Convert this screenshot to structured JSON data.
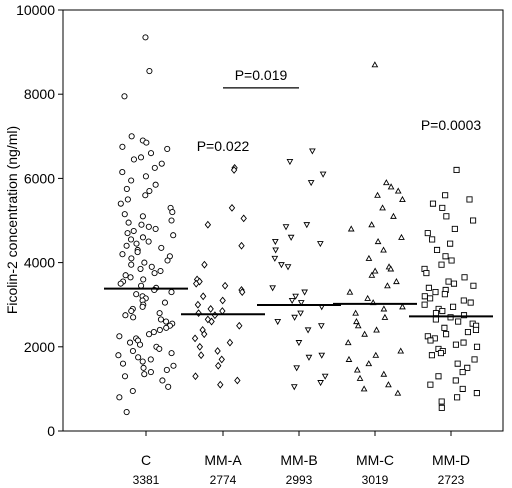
{
  "chart_data": {
    "type": "scatter",
    "ylabel": "Ficolin-2 concentration (ng/ml)",
    "ylim": [
      0,
      10000
    ],
    "yticks": [
      0,
      2000,
      4000,
      6000,
      8000,
      10000
    ],
    "grid": false,
    "categories": [
      "C",
      "MM-A",
      "MM-B",
      "MM-C",
      "MM-D"
    ],
    "medians": [
      "3381",
      "2774",
      "2993",
      "3019",
      "2723"
    ],
    "series": [
      {
        "category": "C",
        "marker": "circle",
        "median": 3381,
        "values": [
          9350,
          8550,
          7950,
          7000,
          6900,
          6850,
          6750,
          6700,
          6600,
          6500,
          6450,
          6350,
          6250,
          6150,
          6050,
          5950,
          5850,
          5750,
          5700,
          5600,
          5500,
          5400,
          5300,
          5200,
          5150,
          5100,
          5000,
          4950,
          4900,
          4850,
          4800,
          4750,
          4700,
          4650,
          4600,
          4550,
          4500,
          4450,
          4400,
          4350,
          4300,
          4250,
          4200,
          4150,
          4100,
          4050,
          4000,
          3950,
          3900,
          3850,
          3800,
          3750,
          3700,
          3650,
          3600,
          3550,
          3500,
          3450,
          3400,
          3350,
          3300,
          3250,
          3200,
          3150,
          3100,
          3050,
          3000,
          2950,
          2900,
          2850,
          2800,
          2750,
          2700,
          2650,
          2600,
          2550,
          2500,
          2450,
          2400,
          2350,
          2300,
          2250,
          2200,
          2150,
          2100,
          2050,
          2000,
          1950,
          1900,
          1850,
          1800,
          1750,
          1700,
          1650,
          1600,
          1550,
          1500,
          1450,
          1400,
          1350,
          1300,
          1200,
          1050,
          950,
          800,
          450
        ]
      },
      {
        "category": "MM-A",
        "marker": "diamond",
        "median": 2774,
        "values": [
          6250,
          6200,
          5300,
          5050,
          4900,
          4400,
          3950,
          3600,
          3550,
          3500,
          3450,
          3350,
          3300,
          3200,
          3100,
          3000,
          2900,
          2850,
          2800,
          2750,
          2650,
          2600,
          2500,
          2400,
          2300,
          2200,
          2100,
          2000,
          1900,
          1800,
          1700,
          1550,
          1300,
          1200,
          1100
        ]
      },
      {
        "category": "MM-B",
        "marker": "triangle-down",
        "median": 2993,
        "values": [
          6650,
          6400,
          6100,
          5900,
          4900,
          4850,
          4600,
          4500,
          4450,
          4300,
          4100,
          3950,
          3900,
          3400,
          3300,
          3200,
          3100,
          3050,
          2950,
          2800,
          2700,
          2600,
          2500,
          2400,
          2100,
          1800,
          1750,
          1500,
          1300,
          1150,
          1050
        ]
      },
      {
        "category": "MM-C",
        "marker": "triangle-up",
        "median": 3019,
        "values": [
          8700,
          5900,
          5800,
          5700,
          5600,
          5500,
          5300,
          5100,
          4900,
          4800,
          4600,
          4500,
          4300,
          4100,
          3900,
          3850,
          3800,
          3700,
          3550,
          3450,
          3300,
          3150,
          3050,
          2950,
          2900,
          2800,
          2700,
          2600,
          2500,
          2400,
          2300,
          2100,
          1900,
          1800,
          1700,
          1600,
          1450,
          1350,
          1250,
          1100,
          1000,
          900
        ]
      },
      {
        "category": "MM-D",
        "marker": "square",
        "median": 2723,
        "values": [
          6200,
          5600,
          5500,
          5400,
          5300,
          5100,
          5000,
          4800,
          4700,
          4550,
          4450,
          4300,
          4150,
          4050,
          3950,
          3850,
          3750,
          3650,
          3550,
          3500,
          3450,
          3400,
          3350,
          3300,
          3250,
          3200,
          3150,
          3100,
          3050,
          3000,
          2950,
          2900,
          2850,
          2800,
          2750,
          2700,
          2650,
          2600,
          2550,
          2500,
          2450,
          2400,
          2350,
          2300,
          2250,
          2200,
          2150,
          2100,
          2050,
          2000,
          1950,
          1900,
          1850,
          1800,
          1700,
          1600,
          1500,
          1400,
          1300,
          1200,
          1100,
          1000,
          900,
          800,
          700,
          550
        ]
      }
    ],
    "annotations": [
      {
        "text": "P=0.019",
        "between": [
          "MM-A",
          "MM-B"
        ],
        "y": 8150,
        "bracket": true
      },
      {
        "text": "P=0.022",
        "category": "MM-A",
        "y": 6650
      },
      {
        "text": "P=0.0003",
        "category": "MM-D",
        "y": 7150
      }
    ]
  }
}
